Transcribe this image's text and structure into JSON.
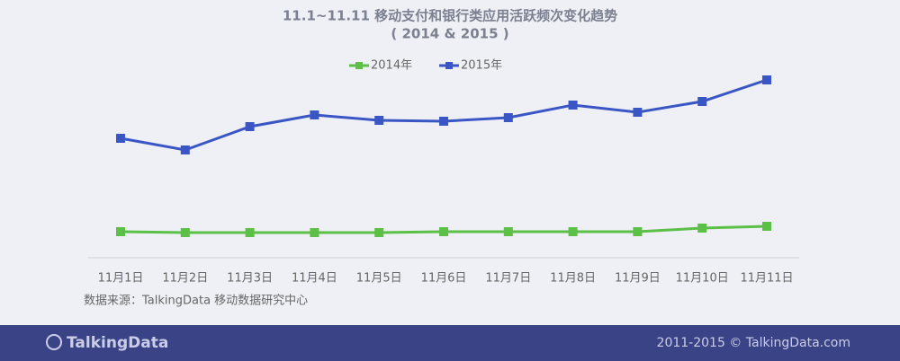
{
  "chart_data": {
    "type": "line",
    "title": "11.1~11.11 移动支付和银行类应用活跃频次变化趋势",
    "subtitle": "( 2014 & 2015 )",
    "categories": [
      "11月1日",
      "11月2日",
      "11月3日",
      "11月4日",
      "11月5日",
      "11月6日",
      "11月7日",
      "11月8日",
      "11月9日",
      "11月10日",
      "11月11日"
    ],
    "series": [
      {
        "name": "2014年",
        "color": "#5cbf46",
        "values": [
          29,
          28,
          28,
          28,
          28,
          29,
          29,
          29,
          29,
          33,
          35
        ]
      },
      {
        "name": "2015年",
        "color": "#3a55c4",
        "values": [
          133,
          120,
          146,
          159,
          153,
          152,
          156,
          170,
          162,
          174,
          198
        ]
      }
    ],
    "ylim": [
      0,
      200
    ],
    "legend": "top"
  },
  "source": "数据来源：TalkingData 移动数据研究中心",
  "footer": {
    "logo": "TalkingData",
    "copyright": "2011-2015 © TalkingData.com"
  }
}
